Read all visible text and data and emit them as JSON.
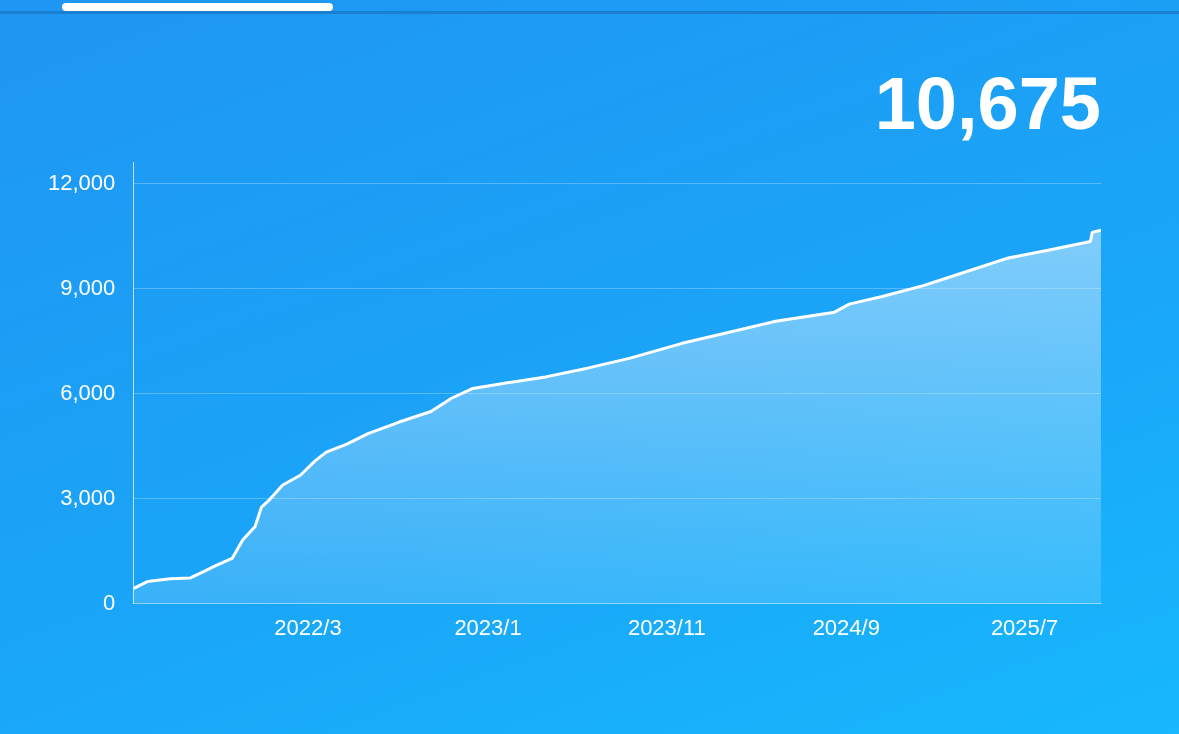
{
  "chart_data": {
    "type": "area",
    "title": "10,675",
    "x": [
      "2021-05-08",
      "2021-06-01",
      "2021-07-10",
      "2021-08-13",
      "2021-09-08",
      "2021-09-26",
      "2021-10-23",
      "2021-11-10",
      "2021-12-01",
      "2021-12-12",
      "2021-12-25",
      "2022-01-17",
      "2022-02-16",
      "2022-03-13",
      "2022-04-01",
      "2022-05-06",
      "2022-06-11",
      "2022-08-03",
      "2022-09-26",
      "2022-10-31",
      "2022-12-06",
      "2023-01-29",
      "2023-04-09",
      "2023-06-19",
      "2023-08-29",
      "2023-11-27",
      "2024-02-06",
      "2024-05-04",
      "2024-08-12",
      "2024-09-06",
      "2024-11-01",
      "2025-01-10",
      "2025-03-21",
      "2025-06-01",
      "2025-08-10",
      "2025-10-21",
      "2025-10-24",
      "2025-11-08"
    ],
    "series": [
      {
        "color": "#ffffff",
        "values": [
          430,
          630,
          710,
          735,
          940,
          1090,
          1290,
          1820,
          2200,
          2760,
          2960,
          3390,
          3670,
          4080,
          4330,
          4560,
          4860,
          5190,
          5490,
          5870,
          6150,
          6300,
          6480,
          6730,
          7010,
          7440,
          7720,
          8070,
          8330,
          8560,
          8780,
          9090,
          9470,
          9870,
          10100,
          10350,
          10610,
          10675
        ]
      }
    ],
    "xlim": [
      "2021-05-08",
      "2025-11-08"
    ],
    "xticks": [
      {
        "value": "2022-03-01",
        "label": "2022/3"
      },
      {
        "value": "2023-01-01",
        "label": "2023/1"
      },
      {
        "value": "2023-11-01",
        "label": "2023/11"
      },
      {
        "value": "2024-09-01",
        "label": "2024/9"
      },
      {
        "value": "2025-07-01",
        "label": "2025/7"
      }
    ],
    "ylim": [
      0,
      12600
    ],
    "yticks": [
      {
        "value": 0,
        "label": "0"
      },
      {
        "value": 3000,
        "label": "3,000"
      },
      {
        "value": 6000,
        "label": "6,000"
      },
      {
        "value": 9000,
        "label": "9,000"
      },
      {
        "value": 12000,
        "label": "12,000"
      }
    ],
    "grid": "y",
    "legend": false,
    "marker": "none",
    "line_style": "solid"
  }
}
